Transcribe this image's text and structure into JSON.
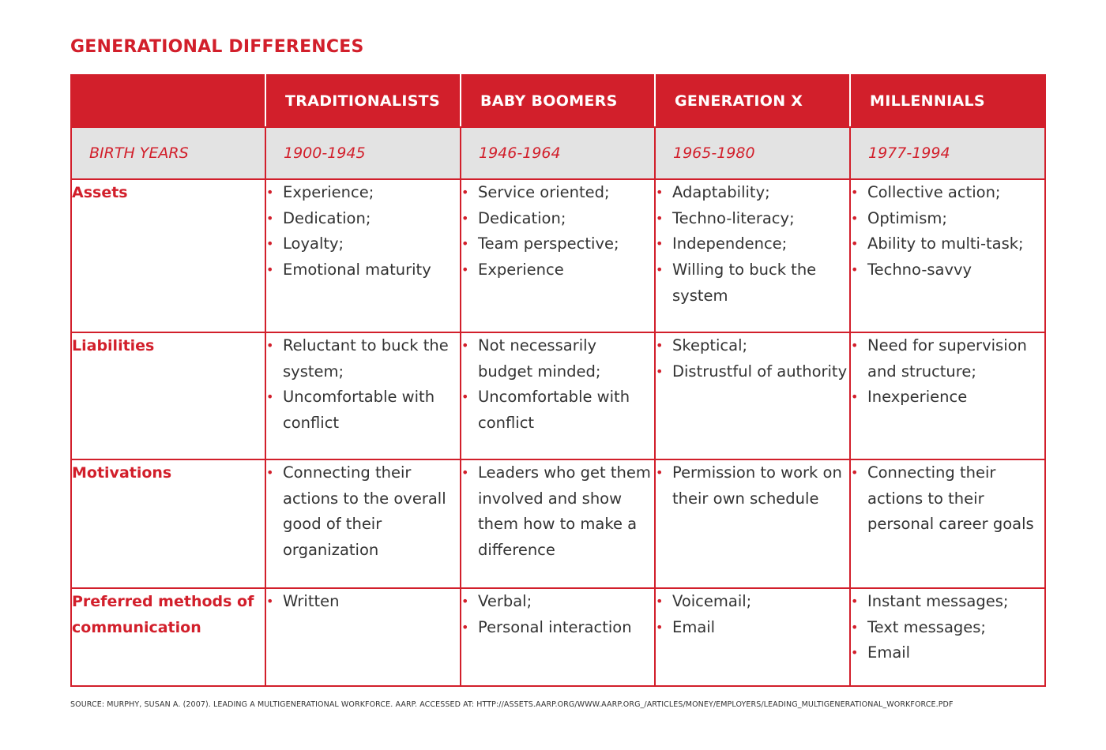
{
  "title": "GENERATIONAL DIFFERENCES",
  "colors": {
    "accent": "#d21f2b",
    "years_row_bg": "#e3e3e3",
    "text": "#333333"
  },
  "headers": [
    "",
    "TRADITIONALISTS",
    "BABY BOOMERS",
    "GENERATION X",
    "MILLENNIALS"
  ],
  "birth_years": {
    "label": "BIRTH YEARS",
    "values": [
      "1900-1945",
      "1946-1964",
      "1965-1980",
      "1977-1994"
    ]
  },
  "rows": [
    {
      "label": "Assets",
      "cells": [
        [
          "Experience;",
          "Dedication;",
          "Loyalty;",
          "Emotional maturity"
        ],
        [
          "Service oriented;",
          "Dedication;",
          "Team perspective;",
          "Experience"
        ],
        [
          "Adaptability;",
          "Techno-literacy;",
          "Independence;",
          "Willing to buck the system"
        ],
        [
          "Collective action;",
          "Optimism;",
          "Ability to multi-task;",
          "Techno-savvy"
        ]
      ]
    },
    {
      "label": "Liabilities",
      "cells": [
        [
          "Reluctant to buck the system;",
          "Uncomfortable with conflict"
        ],
        [
          "Not necessarily budget minded;",
          "Uncomfortable with conflict"
        ],
        [
          "Skeptical;",
          "Distrustful of authority"
        ],
        [
          "Need for supervision and structure;",
          "Inexperience"
        ]
      ]
    },
    {
      "label": "Motivations",
      "cells": [
        [
          "Connecting their actions to the overall good of their organization"
        ],
        [
          "Leaders who get them involved and show them how to make a difference"
        ],
        [
          "Permission to work on their own schedule"
        ],
        [
          "Connecting their actions to their personal career goals"
        ]
      ]
    },
    {
      "label": "Preferred methods of communication",
      "cells": [
        [
          "Written"
        ],
        [
          "Verbal;",
          "Personal interaction"
        ],
        [
          "Voicemail;",
          "Email"
        ],
        [
          "Instant messages;",
          "Text messages;",
          "Email"
        ]
      ]
    }
  ],
  "source": "SOURCE: MURPHY, SUSAN A. (2007). LEADING A MULTIGENERATIONAL WORKFORCE. AARP. ACCESSED AT: HTTP://ASSETS.AARP.ORG/WWW.AARP.ORG_/ARTICLES/MONEY/EMPLOYERS/LEADING_MULTIGENERATIONAL_WORKFORCE.PDF"
}
